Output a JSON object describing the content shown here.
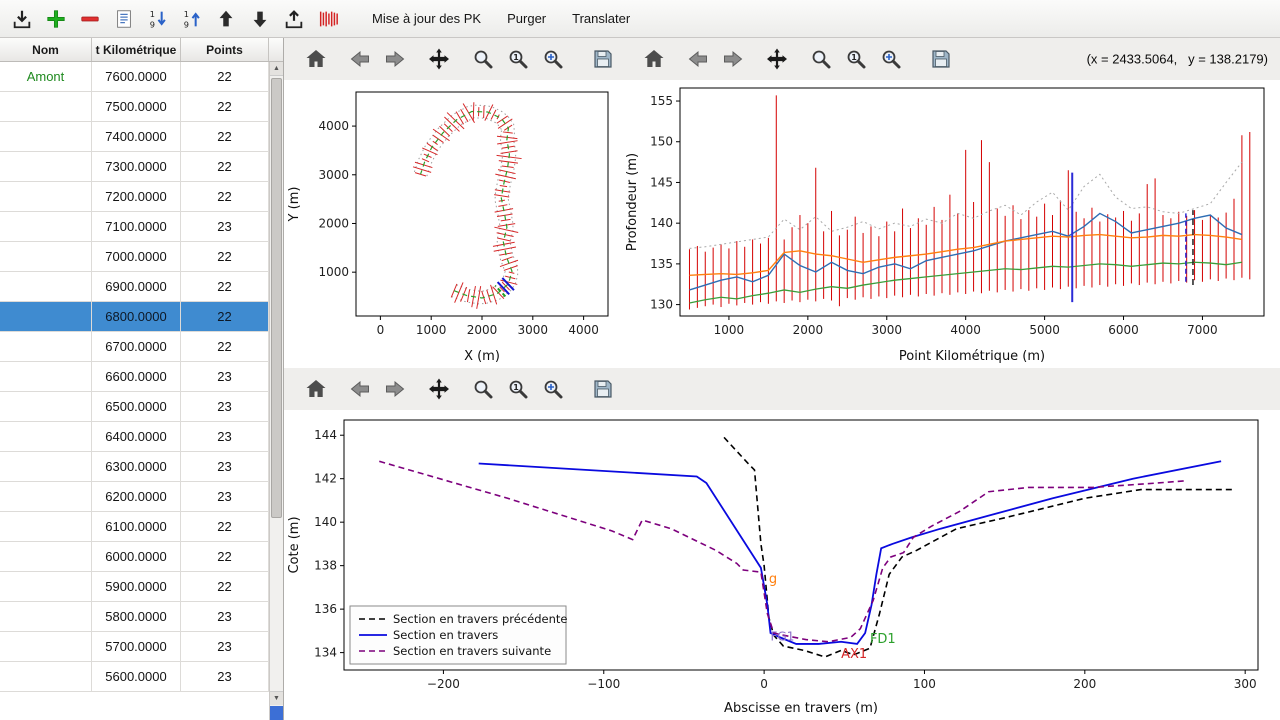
{
  "toolbar": {
    "buttons": [
      {
        "label": "Mise à jour des PK"
      },
      {
        "label": "Purger"
      },
      {
        "label": "Translater"
      }
    ]
  },
  "table": {
    "columns": [
      "Nom",
      "t Kilométrique",
      "Points"
    ],
    "selected_index": 8,
    "rows": [
      [
        "Amont",
        "7600.0000",
        "22"
      ],
      [
        "",
        "7500.0000",
        "22"
      ],
      [
        "",
        "7400.0000",
        "22"
      ],
      [
        "",
        "7300.0000",
        "22"
      ],
      [
        "",
        "7200.0000",
        "22"
      ],
      [
        "",
        "7100.0000",
        "23"
      ],
      [
        "",
        "7000.0000",
        "22"
      ],
      [
        "",
        "6900.0000",
        "22"
      ],
      [
        "",
        "6800.0000",
        "22"
      ],
      [
        "",
        "6700.0000",
        "22"
      ],
      [
        "",
        "6600.0000",
        "23"
      ],
      [
        "",
        "6500.0000",
        "23"
      ],
      [
        "",
        "6400.0000",
        "23"
      ],
      [
        "",
        "6300.0000",
        "23"
      ],
      [
        "",
        "6200.0000",
        "23"
      ],
      [
        "",
        "6100.0000",
        "22"
      ],
      [
        "",
        "6000.0000",
        "22"
      ],
      [
        "",
        "5900.0000",
        "22"
      ],
      [
        "",
        "5800.0000",
        "23"
      ],
      [
        "",
        "5700.0000",
        "23"
      ],
      [
        "",
        "5600.0000",
        "23"
      ]
    ]
  },
  "readout": "(x = 2433.5064,   y = 138.2179)",
  "chart_data": [
    {
      "id": "plan",
      "type": "line",
      "title": "",
      "xlabel": "X (m)",
      "ylabel": "Y (m)",
      "xlim": [
        -480,
        4480
      ],
      "ylim": [
        100,
        4700
      ],
      "xticks": [
        0,
        1000,
        2000,
        3000,
        4000
      ],
      "yticks": [
        1000,
        2000,
        3000,
        4000
      ],
      "river": {
        "centerline": [
          [
            1450,
            620
          ],
          [
            1700,
            520
          ],
          [
            2000,
            470
          ],
          [
            2300,
            560
          ],
          [
            2520,
            760
          ],
          [
            2590,
            1020
          ],
          [
            2480,
            1320
          ],
          [
            2420,
            1620
          ],
          [
            2490,
            1920
          ],
          [
            2440,
            2220
          ],
          [
            2380,
            2520
          ],
          [
            2430,
            2820
          ],
          [
            2500,
            3120
          ],
          [
            2540,
            3420
          ],
          [
            2490,
            3720
          ],
          [
            2520,
            3960
          ],
          [
            2380,
            4160
          ],
          [
            2110,
            4290
          ],
          [
            1800,
            4300
          ],
          [
            1500,
            4130
          ],
          [
            1230,
            3860
          ],
          [
            1010,
            3560
          ],
          [
            870,
            3260
          ],
          [
            790,
            3010
          ]
        ],
        "n_sections": 70,
        "tick_color": "#d62728",
        "center_color": "#2ca02c",
        "bank_color": "#9e9e9e",
        "blue_sections": [
          0.15,
          0.168
        ],
        "blue_color": "#1515d0",
        "green_section": 0.138
      }
    },
    {
      "id": "profile",
      "type": "line",
      "title": "",
      "xlabel": "Point Kilométrique (m)",
      "ylabel": "Profondeur (m)",
      "xlim": [
        380,
        7780
      ],
      "ylim": [
        128.6,
        156.6
      ],
      "xticks": [
        1000,
        2000,
        3000,
        4000,
        5000,
        6000,
        7000
      ],
      "yticks": [
        130,
        135,
        140,
        145,
        150,
        155
      ],
      "bars": {
        "x0": 500,
        "dx": 100,
        "color": "#d40000",
        "ymin": [
          129.4,
          129.6,
          129.8,
          130.0,
          129.7,
          130.1,
          129.9,
          130.2,
          130.0,
          130.3,
          130.1,
          130.4,
          130.2,
          130.5,
          130.3,
          130.6,
          130.4,
          130.7,
          130.5,
          129.8,
          130.8,
          130.6,
          130.9,
          130.7,
          131.0,
          130.8,
          131.1,
          130.9,
          131.2,
          131.0,
          131.3,
          131.1,
          131.4,
          131.2,
          131.5,
          131.3,
          131.6,
          131.4,
          131.7,
          131.5,
          131.8,
          131.6,
          131.9,
          131.7,
          132.0,
          131.8,
          132.1,
          131.9,
          132.2,
          132.0,
          132.3,
          132.1,
          132.4,
          132.2,
          132.5,
          132.3,
          132.6,
          132.4,
          132.7,
          132.5,
          132.8,
          132.6,
          132.9,
          132.7,
          133.0,
          132.8,
          133.1,
          132.9,
          133.2,
          133.0,
          133.3,
          133.1
        ],
        "ymax": [
          136.8,
          137.2,
          136.5,
          137.0,
          137.4,
          136.9,
          137.8,
          137.1,
          138.0,
          137.5,
          138.2,
          155.7,
          138.0,
          139.5,
          141.0,
          140.0,
          146.8,
          139.0,
          141.5,
          138.5,
          139.2,
          140.8,
          138.8,
          139.6,
          138.4,
          140.2,
          139.0,
          141.8,
          139.4,
          140.6,
          139.8,
          142.0,
          140.4,
          143.5,
          141.2,
          149.0,
          142.6,
          150.2,
          147.5,
          141.8,
          140.9,
          142.2,
          140.5,
          141.6,
          140.8,
          142.4,
          141.0,
          142.8,
          146.5,
          141.4,
          140.6,
          141.9,
          140.2,
          141.1,
          140.7,
          141.5,
          140.3,
          141.2,
          144.8,
          145.5,
          141.0,
          140.6,
          141.4,
          140.9,
          141.6,
          140.4,
          141.0,
          140.7,
          141.3,
          143.0,
          150.8,
          151.2
        ]
      },
      "lines": [
        {
          "name": "enveloppe",
          "color": "#a8a8a8",
          "dash": "2 3",
          "width": 1,
          "x0": 500,
          "dx": 200,
          "y": [
            136.9,
            137.1,
            137.4,
            137.7,
            138.0,
            138.3,
            140.5,
            139.2,
            140.8,
            139.0,
            139.5,
            140.2,
            139.3,
            140.0,
            139.6,
            140.5,
            140.0,
            141.2,
            140.6,
            141.5,
            142.2,
            141.0,
            142.6,
            143.8,
            141.6,
            144.5,
            146.0,
            143.2,
            141.8,
            142.0,
            141.4,
            141.2,
            141.8,
            142.4,
            145.0,
            147.5
          ]
        },
        {
          "name": "fond bleu",
          "color": "#2e6db4",
          "width": 1.4,
          "x0": 500,
          "dx": 200,
          "y": [
            131.8,
            132.4,
            133.0,
            133.4,
            132.8,
            133.6,
            136.2,
            134.8,
            134.0,
            135.2,
            134.2,
            133.8,
            134.6,
            135.0,
            134.4,
            135.4,
            135.8,
            136.2,
            136.6,
            137.2,
            137.8,
            138.2,
            138.6,
            139.0,
            138.4,
            139.6,
            141.2,
            140.2,
            138.8,
            139.2,
            139.6,
            140.0,
            140.6,
            141.0,
            139.4,
            138.6
          ]
        },
        {
          "name": "ligne orange",
          "color": "#ff7f0e",
          "width": 1.4,
          "x0": 500,
          "dx": 200,
          "y": [
            133.6,
            133.7,
            133.8,
            133.7,
            133.9,
            134.2,
            136.4,
            136.6,
            136.2,
            136.0,
            135.6,
            135.2,
            135.5,
            135.8,
            136.0,
            136.2,
            136.5,
            136.8,
            137.0,
            137.4,
            137.8,
            138.0,
            138.2,
            138.4,
            138.3,
            138.5,
            138.6,
            138.4,
            138.2,
            138.3,
            138.5,
            138.4,
            138.6,
            138.5,
            138.3,
            138.0
          ]
        },
        {
          "name": "ligne verte",
          "color": "#3a9e3a",
          "width": 1.3,
          "x0": 500,
          "dx": 200,
          "y": [
            130.2,
            130.6,
            130.9,
            130.7,
            131.1,
            131.4,
            131.8,
            131.5,
            131.9,
            132.2,
            132.0,
            132.4,
            132.7,
            133.0,
            133.2,
            133.4,
            133.6,
            133.8,
            134.0,
            134.2,
            134.4,
            134.3,
            134.5,
            134.7,
            134.6,
            134.8,
            135.0,
            134.9,
            134.7,
            134.9,
            135.1,
            135.0,
            135.2,
            135.1,
            134.9,
            135.2
          ]
        }
      ],
      "vlines": [
        {
          "x": 5350,
          "y0": 130.3,
          "y1": 146.2,
          "color": "#2b2bd6",
          "width": 2
        },
        {
          "x": 6790,
          "y0": 132.8,
          "y1": 141.2,
          "color": "#2b2bd6",
          "width": 1.5,
          "dash": "5 3"
        },
        {
          "x": 6880,
          "y0": 132.4,
          "y1": 141.6,
          "color": "#222222",
          "width": 1.5,
          "dash": "6 4"
        }
      ]
    },
    {
      "id": "section",
      "type": "line",
      "title": "",
      "xlabel": "Abscisse en travers (m)",
      "ylabel": "Cote (m)",
      "xlim": [
        -262,
        308
      ],
      "ylim": [
        133.2,
        144.7
      ],
      "xticks": [
        -200,
        -100,
        0,
        100,
        200,
        300
      ],
      "yticks": [
        134,
        136,
        138,
        140,
        142,
        144
      ],
      "legend": true,
      "series": [
        {
          "name": "Section en travers précédente",
          "color": "#000000",
          "width": 1.6,
          "dash": "6 4",
          "points": [
            [
              -25,
              143.9
            ],
            [
              -10,
              142.7
            ],
            [
              -6,
              142.4
            ],
            [
              -2,
              139.0
            ],
            [
              0,
              138.0
            ],
            [
              3,
              135.6
            ],
            [
              6,
              134.8
            ],
            [
              12,
              134.3
            ],
            [
              25,
              134.1
            ],
            [
              38,
              133.8
            ],
            [
              48,
              134.1
            ],
            [
              56,
              133.9
            ],
            [
              66,
              134.2
            ],
            [
              72,
              135.8
            ],
            [
              78,
              137.6
            ],
            [
              86,
              138.4
            ],
            [
              95,
              138.7
            ],
            [
              120,
              139.7
            ],
            [
              150,
              140.2
            ],
            [
              200,
              141.1
            ],
            [
              235,
              141.5
            ],
            [
              292,
              141.5
            ]
          ]
        },
        {
          "name": "Section en travers",
          "color": "#0a0adf",
          "width": 1.8,
          "points": [
            [
              -178,
              142.7
            ],
            [
              -42,
              142.1
            ],
            [
              -36,
              141.8
            ],
            [
              -2,
              137.9
            ],
            [
              2,
              136.2
            ],
            [
              4,
              134.9
            ],
            [
              10,
              134.7
            ],
            [
              20,
              134.4
            ],
            [
              34,
              134.4
            ],
            [
              48,
              134.5
            ],
            [
              58,
              134.4
            ],
            [
              63,
              134.9
            ],
            [
              67,
              136.2
            ],
            [
              70,
              137.6
            ],
            [
              73,
              138.8
            ],
            [
              80,
              139.0
            ],
            [
              92,
              139.3
            ],
            [
              110,
              139.7
            ],
            [
              140,
              140.3
            ],
            [
              180,
              141.1
            ],
            [
              230,
              142.0
            ],
            [
              285,
              142.8
            ]
          ]
        },
        {
          "name": "Section en travers suivante",
          "color": "#7d007d",
          "width": 1.6,
          "dash": "6 4",
          "points": [
            [
              -240,
              142.8
            ],
            [
              -160,
              141.1
            ],
            [
              -95,
              139.6
            ],
            [
              -82,
              139.2
            ],
            [
              -76,
              140.1
            ],
            [
              -58,
              139.7
            ],
            [
              -30,
              138.7
            ],
            [
              -17,
              138.1
            ],
            [
              -13,
              137.8
            ],
            [
              -2,
              137.7
            ],
            [
              2,
              135.8
            ],
            [
              6,
              134.9
            ],
            [
              12,
              134.8
            ],
            [
              26,
              134.6
            ],
            [
              40,
              134.5
            ],
            [
              54,
              134.7
            ],
            [
              60,
              135.1
            ],
            [
              68,
              136.4
            ],
            [
              74,
              137.9
            ],
            [
              79,
              138.4
            ],
            [
              87,
              138.6
            ],
            [
              93,
              139.3
            ],
            [
              104,
              139.8
            ],
            [
              122,
              140.5
            ],
            [
              140,
              141.4
            ],
            [
              165,
              141.6
            ],
            [
              205,
              141.6
            ],
            [
              245,
              141.8
            ],
            [
              262,
              141.9
            ]
          ]
        }
      ],
      "annotations": [
        {
          "text": "g",
          "x": 3,
          "y": 137.2,
          "color": "#ff7f0e",
          "size": 13
        },
        {
          "text": "FG1",
          "x": 4,
          "y": 134.55,
          "color": "#8b6fc8",
          "size": 12
        },
        {
          "text": "AX1",
          "x": 48,
          "y": 133.75,
          "color": "#d62728",
          "size": 13
        },
        {
          "text": "FD1",
          "x": 66,
          "y": 134.45,
          "color": "#2ca02c",
          "size": 13
        }
      ]
    }
  ]
}
